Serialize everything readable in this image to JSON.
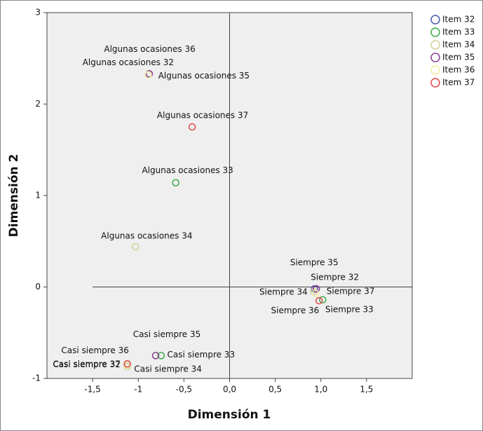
{
  "chart_data": {
    "type": "scatter",
    "x_label": "Dimensión 1",
    "y_label": "Dimensión 2",
    "xlim": [
      -2,
      2
    ],
    "ylim": [
      -1,
      3
    ],
    "xticks": [
      {
        "value": -1.5,
        "label": "-1,5"
      },
      {
        "value": -1,
        "label": "-1"
      },
      {
        "value": -0.5,
        "label": "-0,5"
      },
      {
        "value": 0,
        "label": "0,0"
      },
      {
        "value": 0.5,
        "label": "0,5"
      },
      {
        "value": 1,
        "label": "1,0"
      },
      {
        "value": 1.5,
        "label": "1,5"
      }
    ],
    "yticks": [
      -1,
      0,
      1,
      2,
      3
    ],
    "series": [
      {
        "name": "Item 32",
        "color": "#4a5aa8",
        "labels": [
          "Algunas ocasiones 32",
          "Siempre 32",
          "Casi siempre 32"
        ],
        "x": [
          -0.88,
          0.93,
          -1.12
        ],
        "y": [
          2.33,
          -0.02,
          -0.85
        ]
      },
      {
        "name": "Item 33",
        "color": "#3cab4a",
        "labels": [
          "Algunas ocasiones 33",
          "Siempre 33",
          "Casi siempre 33"
        ],
        "x": [
          -0.59,
          1.02,
          -0.75
        ],
        "y": [
          1.14,
          -0.14,
          -0.75
        ]
      },
      {
        "name": "Item 34",
        "color": "#d4cf96",
        "labels": [
          "Algunas ocasiones 34",
          "Siempre 34",
          "Casi siempre 34"
        ],
        "x": [
          -1.03,
          0.92,
          -1.12
        ],
        "y": [
          0.44,
          -0.05,
          -0.87
        ]
      },
      {
        "name": "Item 35",
        "color": "#8b3d8e",
        "labels": [
          "Algunas ocasiones 35",
          "Siempre 35",
          "Casi siempre 35"
        ],
        "x": [
          -0.88,
          0.95,
          -0.81
        ],
        "y": [
          2.33,
          -0.02,
          -0.75
        ]
      },
      {
        "name": "Item 36",
        "color": "#f3ee9e",
        "labels": [
          "Algunas ocasiones 36",
          "Siempre 36",
          "Casi siempre 36"
        ],
        "x": [
          -0.89,
          0.94,
          -1.12
        ],
        "y": [
          2.32,
          -0.07,
          -0.85
        ]
      },
      {
        "name": "Item 37",
        "color": "#e2474a",
        "labels": [
          "Algunas ocasiones 37",
          "Siempre 37",
          "Casi siempre 37"
        ],
        "x": [
          -0.41,
          0.98,
          -1.12
        ],
        "y": [
          1.75,
          -0.15,
          -0.84
        ]
      }
    ]
  }
}
